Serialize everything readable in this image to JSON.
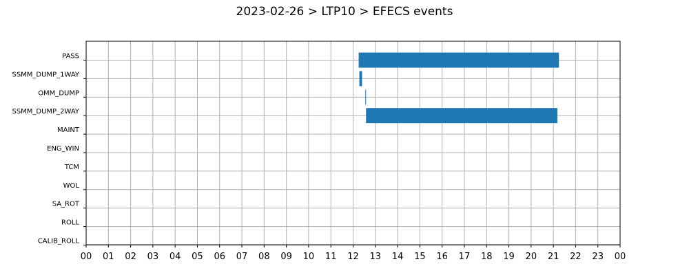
{
  "chart_data": {
    "type": "bar",
    "orientation": "horizontal",
    "title": "2023-02-26 > LTP10 > EFECS events",
    "xlabel": "",
    "ylabel": "",
    "xlim": [
      0,
      24
    ],
    "x_tick_labels": [
      "00",
      "01",
      "02",
      "03",
      "04",
      "05",
      "06",
      "07",
      "08",
      "09",
      "10",
      "11",
      "12",
      "13",
      "14",
      "15",
      "16",
      "17",
      "18",
      "19",
      "20",
      "21",
      "22",
      "23",
      "00"
    ],
    "categories": [
      "PASS",
      "SSMM_DUMP_1WAY",
      "OMM_DUMP",
      "SSMM_DUMP_2WAY",
      "MAINT",
      "ENG_WIN",
      "TCM",
      "WOL",
      "SA_ROT",
      "ROLL",
      "CALIB_ROLL"
    ],
    "grid": true,
    "bar_color": "#1f77b4",
    "events": [
      {
        "category": "PASS",
        "start": 12.25,
        "end": 21.25
      },
      {
        "category": "SSMM_DUMP_1WAY",
        "start": 12.28,
        "end": 12.4
      },
      {
        "category": "OMM_DUMP",
        "start": 12.55,
        "end": 12.58
      },
      {
        "category": "SSMM_DUMP_2WAY",
        "start": 12.58,
        "end": 21.18
      }
    ]
  }
}
